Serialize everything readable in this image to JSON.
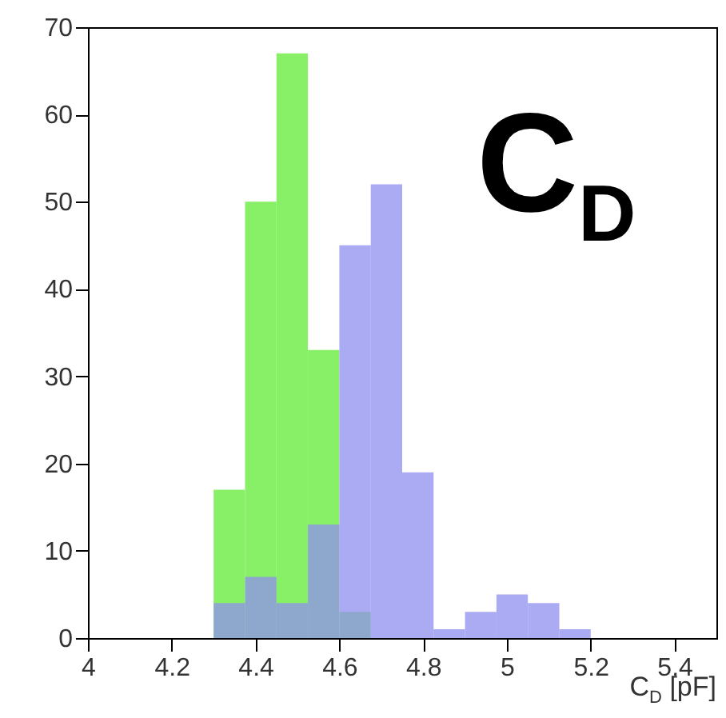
{
  "chart_data": {
    "type": "histogram",
    "xlabel": "C$_{D}$ [pF]",
    "annotations": [
      "C$_{D}$"
    ],
    "bins": [
      4.3,
      4.375,
      4.45,
      4.525,
      4.6,
      4.675,
      4.75,
      4.825,
      4.9,
      4.975,
      5.05,
      5.125,
      5.2
    ],
    "series": [
      {
        "color": "#88f066",
        "values": [
          17,
          50,
          67,
          33,
          3,
          null,
          null,
          null,
          null,
          null,
          null,
          null
        ]
      },
      {
        "color": "#8f8ff0",
        "values": [
          4,
          7,
          4,
          13,
          45,
          52,
          19,
          1,
          3,
          5,
          4,
          1
        ]
      }
    ],
    "xlim": [
      4,
      5.5
    ],
    "xticks": [
      4,
      4.2,
      4.4,
      4.6,
      4.8,
      5,
      5.2,
      5.4
    ],
    "ylim": [
      0,
      70
    ],
    "yticks": [
      0,
      10,
      20,
      30,
      40,
      50,
      60,
      70
    ],
    "grid": false
  }
}
